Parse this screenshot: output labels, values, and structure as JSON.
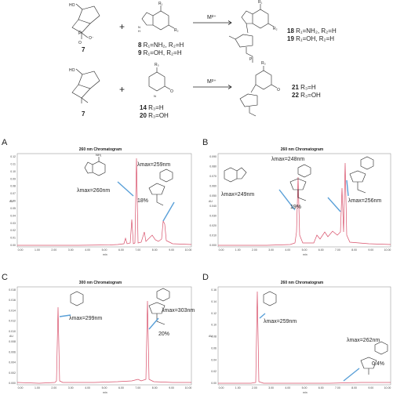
{
  "scheme": {
    "row1": {
      "reactant_a": "7",
      "plus": "+",
      "base_labels": [
        {
          "num": "8",
          "text": " R₁=NH₂, R₂=H"
        },
        {
          "num": "9",
          "text": " R₁=OH,  R₂=H"
        }
      ],
      "catalyst": "M²⁺",
      "product_labels": [
        {
          "num": "18",
          "text": " R₁=NH₂, R₂=H"
        },
        {
          "num": "19",
          "text": " R₁=OH, R₂=H"
        }
      ],
      "base_atoms": {
        "r1": "R₁",
        "r2": "R₂",
        "n": "N",
        "nh": "N\nH"
      },
      "phosphate": {
        "p": "P",
        "o": "O",
        "ominus": "O⁻"
      }
    },
    "row2": {
      "reactant_a": "7",
      "plus": "+",
      "base_labels": [
        {
          "num": "14",
          "text": " R₃=H"
        },
        {
          "num": "20",
          "text": " R₃=OH"
        }
      ],
      "catalyst": "M²⁺",
      "product_labels": [
        {
          "num": "21",
          "text": " R₃=H"
        },
        {
          "num": "22",
          "text": " R₃=OH"
        }
      ],
      "base_atoms": {
        "r3": "R₃",
        "o": "O",
        "n": "N",
        "nh": "N\nH"
      }
    }
  },
  "panels": [
    {
      "letter": "A",
      "title": "260 nm Chromatogram",
      "yunit": "AU",
      "xunit": "min",
      "yticks": [
        "0.00",
        "0.01",
        "0.02",
        "0.03",
        "0.04",
        "0.05",
        "0.06",
        "0.07",
        "0.08",
        "0.09",
        "0.10",
        "0.11",
        "0.12"
      ],
      "xticks": [
        "0.00",
        "1.00",
        "2.00",
        "3.00",
        "4.00",
        "5.00",
        "6.00",
        "7.00",
        "8.00",
        "9.00",
        "10.00"
      ],
      "annotations": [
        "λmax=260nm",
        "λmax=259nm",
        "18%"
      ]
    },
    {
      "letter": "B",
      "title": "260 nm Chromatogram",
      "yunit": "AU",
      "xunit": "min",
      "yticks": [
        "0.000",
        "0.010",
        "0.020",
        "0.030",
        "0.040",
        "0.050",
        "0.060",
        "0.070",
        "0.080",
        "0.090"
      ],
      "xticks": [
        "0.00",
        "1.00",
        "2.00",
        "3.00",
        "4.00",
        "5.00",
        "6.00",
        "7.00",
        "8.00",
        "9.00",
        "10.00"
      ],
      "annotations": [
        "λmax=248nm",
        "λmax=249nm",
        "19%",
        "λmax=256nm"
      ]
    },
    {
      "letter": "C",
      "title": "300 nm Chromatogram",
      "yunit": "AU",
      "xunit": "min",
      "yticks": [
        "0.000",
        "0.002",
        "0.004",
        "0.006",
        "0.008",
        "0.010",
        "0.012",
        "0.014",
        "0.016",
        "0.018"
      ],
      "xticks": [
        "0.00",
        "1.00",
        "2.00",
        "3.00",
        "4.00",
        "5.00",
        "6.00",
        "7.00",
        "8.00",
        "9.00",
        "10.00"
      ],
      "annotations": [
        "λmax=299nm",
        "λmax=303nm",
        "20%"
      ]
    },
    {
      "letter": "D",
      "title": "260 nm Chromatogram",
      "yunit": "AU",
      "xunit": "min",
      "yticks": [
        "0.00",
        "0.02",
        "0.04",
        "0.06",
        "0.08",
        "0.10",
        "0.12",
        "0.14",
        "0.16"
      ],
      "xticks": [
        "0.00",
        "1.00",
        "2.00",
        "3.00",
        "4.00",
        "5.00",
        "6.00",
        "7.00",
        "8.00",
        "9.00",
        "10.00"
      ],
      "annotations": [
        "λmax=259nm",
        "λmax=262nm",
        "0.4%"
      ]
    }
  ]
}
